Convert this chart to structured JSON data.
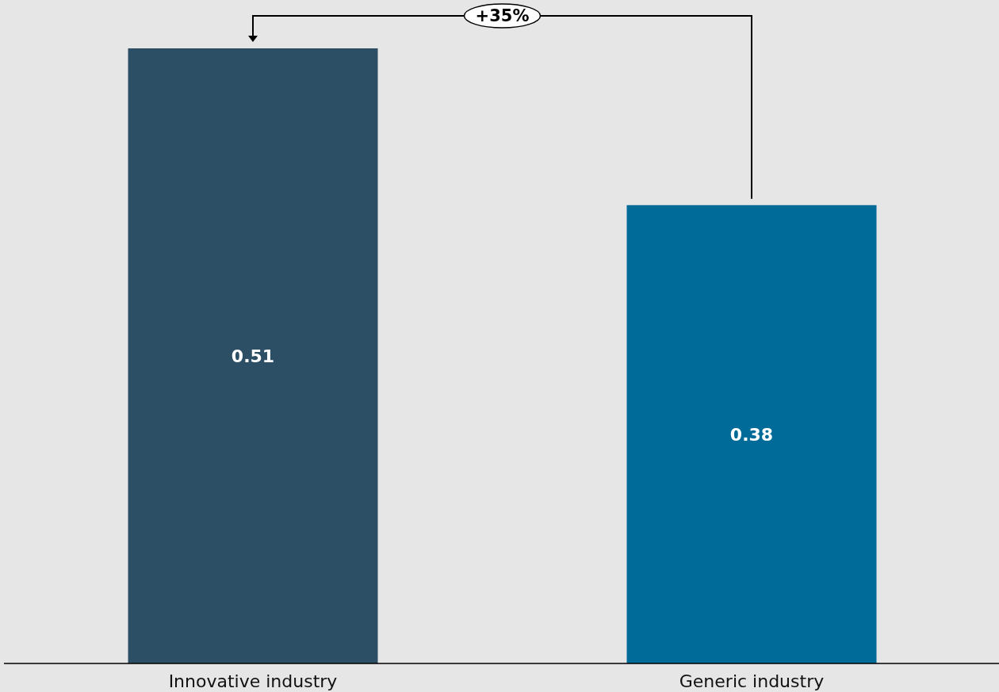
{
  "chart_data": {
    "type": "bar",
    "categories": [
      "Innovative industry",
      "Generic industry"
    ],
    "values": [
      0.51,
      0.38
    ],
    "colors": [
      "#2c4f65",
      "#006b99"
    ],
    "data_labels": true,
    "annotations": [
      "+35%"
    ]
  }
}
